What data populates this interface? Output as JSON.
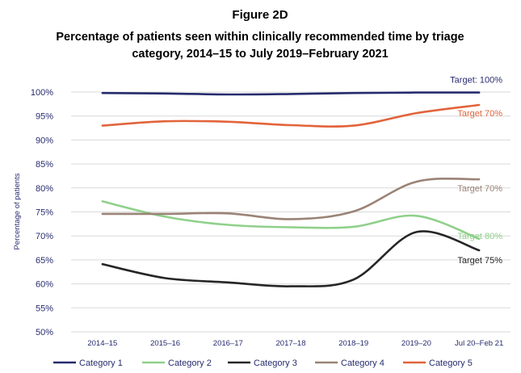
{
  "chart_data": {
    "type": "line",
    "figure_label": "Figure 2D",
    "title_lines": [
      "Percentage of patients seen within clinically recommended time by triage",
      "category, 2014–15 to July 2019–February 2021"
    ],
    "ylabel": "Percentage of patients",
    "ylim": [
      50,
      100
    ],
    "yticks": [
      "50%",
      "55%",
      "60%",
      "65%",
      "70%",
      "75%",
      "80%",
      "85%",
      "90%",
      "95%",
      "100%"
    ],
    "categories": [
      "2014–15",
      "2015–16",
      "2016–17",
      "2017–18",
      "2018–19",
      "2019–20",
      "Jul 20–Feb 21"
    ],
    "grid": true,
    "legend_position": "bottom",
    "series": [
      {
        "name": "Category 1",
        "color": "#262b6e",
        "values": [
          99.8,
          99.7,
          99.5,
          99.6,
          99.8,
          99.9,
          99.9
        ]
      },
      {
        "name": "Category  2",
        "color": "#8fd08a",
        "values": [
          77.2,
          74.0,
          72.3,
          71.8,
          71.9,
          74.2,
          69.4
        ]
      },
      {
        "name": "Category 3",
        "color": "#262626",
        "values": [
          64.1,
          61.2,
          60.3,
          59.5,
          60.9,
          70.8,
          67.0
        ]
      },
      {
        "name": "Category 4",
        "color": "#9a8376",
        "values": [
          74.6,
          74.6,
          74.7,
          73.5,
          75.1,
          81.3,
          81.8
        ]
      },
      {
        "name": "Category 5",
        "color": "#e2643b",
        "values": [
          93.0,
          93.9,
          93.8,
          93.1,
          93.0,
          95.6,
          97.3
        ]
      }
    ],
    "annotations": [
      {
        "text": "Target: 100%",
        "series": 0
      },
      {
        "text": "Target 70%",
        "series": 4
      },
      {
        "text": "Target 70%",
        "series": 3
      },
      {
        "text": "Target 80%",
        "series": 1
      },
      {
        "text": "Target 75%",
        "series": 2
      }
    ]
  }
}
